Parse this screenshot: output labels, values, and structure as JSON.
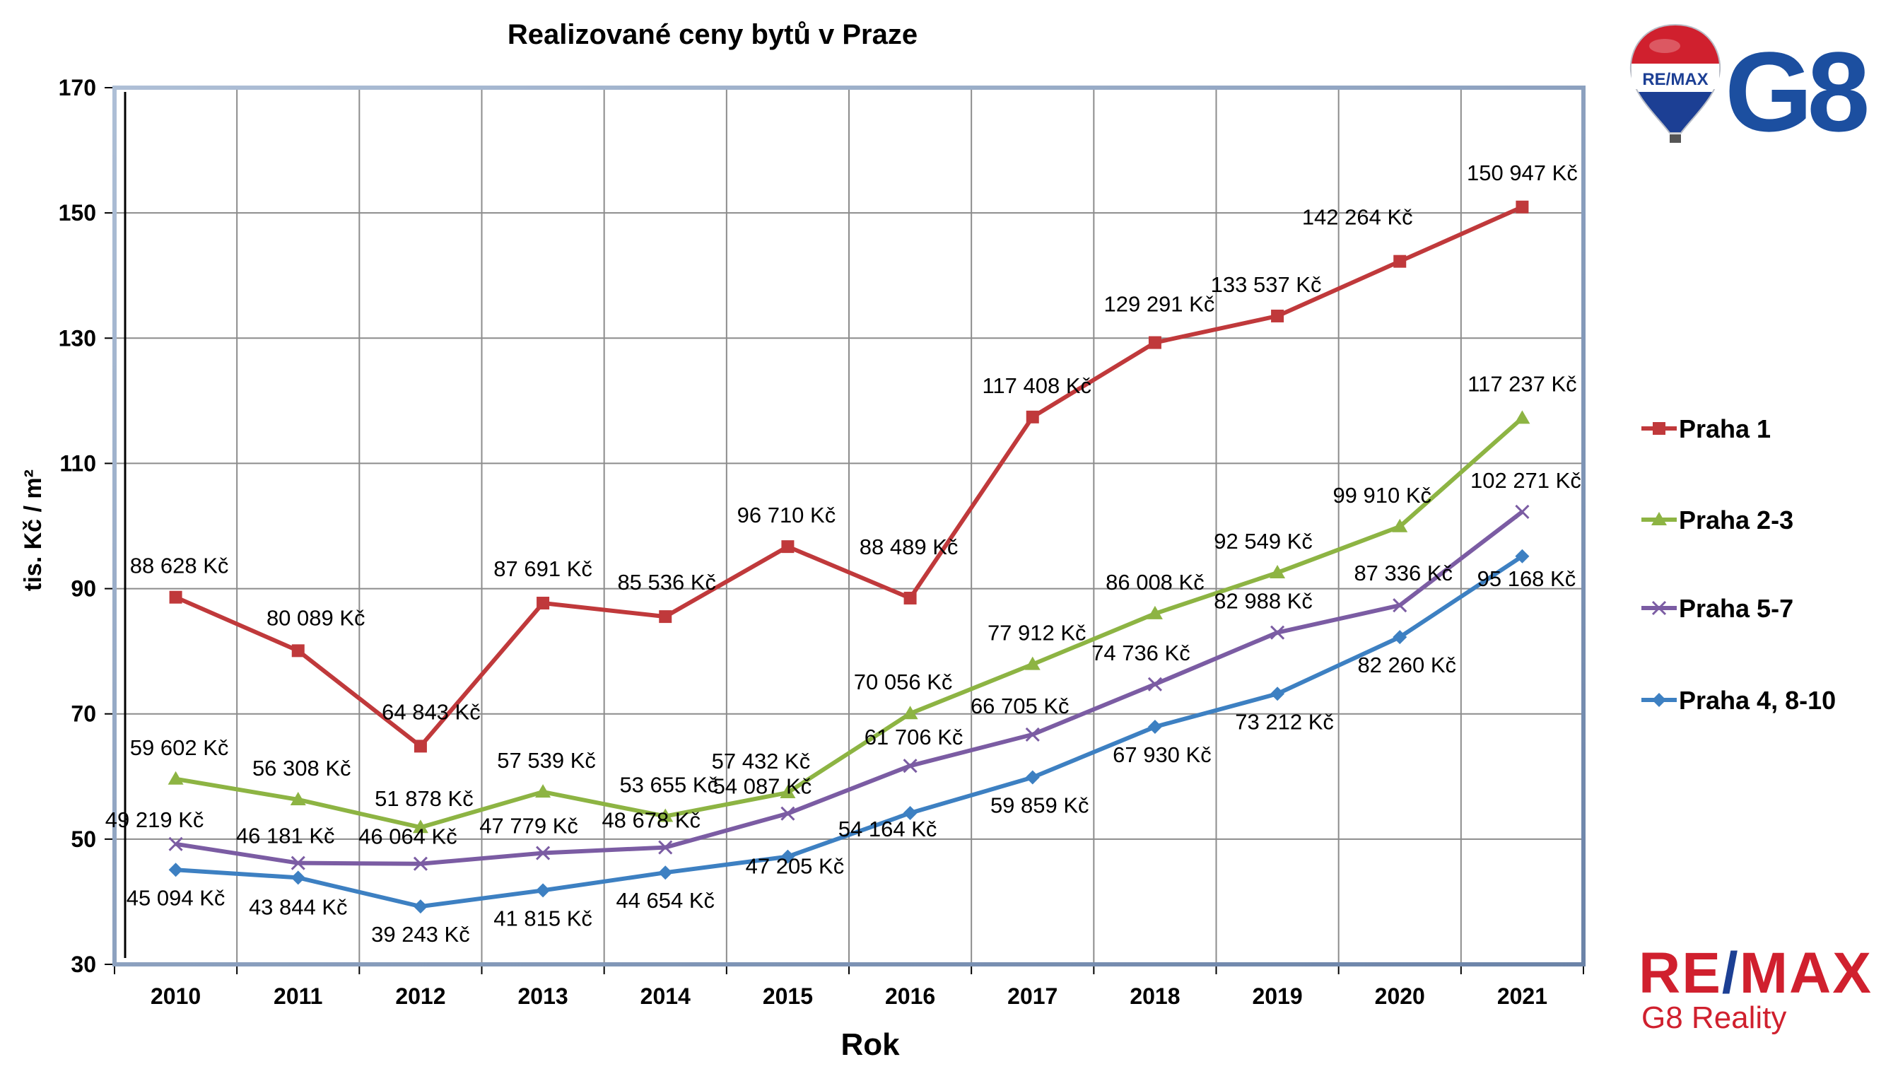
{
  "chart_data": {
    "type": "line",
    "title": "Realizované ceny bytů v Praze",
    "xlabel": "Rok",
    "ylabel": "tis. Kč / m²",
    "ylim": [
      30,
      170
    ],
    "yticks": [
      "30",
      "50",
      "70",
      "90",
      "110",
      "130",
      "150",
      "170"
    ],
    "categories": [
      "2010",
      "2011",
      "2012",
      "2013",
      "2014",
      "2015",
      "2016",
      "2017",
      "2018",
      "2019",
      "2020",
      "2021"
    ],
    "grid": true,
    "legend_position": "right",
    "series": [
      {
        "name": "Praha 1",
        "color": "#c0393b",
        "marker": "square",
        "values": [
          88.628,
          80.089,
          64.843,
          87.691,
          85.536,
          96.71,
          88.489,
          117.408,
          129.291,
          133.537,
          142.264,
          150.947
        ],
        "labels": [
          "88 628 Kč",
          "80 089 Kč",
          "64 843 Kč",
          "87 691 Kč",
          "85 536 Kč",
          "96 710 Kč",
          "88 489 Kč",
          "117 408 Kč",
          "129 291 Kč",
          "133 537 Kč",
          "142 264 Kč",
          "150 947 Kč"
        ]
      },
      {
        "name": "Praha 2-3",
        "color": "#8db443",
        "marker": "triangle",
        "values": [
          59.602,
          56.308,
          51.878,
          57.539,
          53.655,
          57.432,
          70.056,
          77.912,
          86.008,
          92.549,
          99.91,
          117.237
        ],
        "labels": [
          "59 602 Kč",
          "56 308 Kč",
          "51 878 Kč",
          "57 539 Kč",
          "53 655 Kč",
          "57 432 Kč",
          "70 056 Kč",
          "77 912 Kč",
          "86 008 Kč",
          "92 549 Kč",
          "99 910 Kč",
          "117 237 Kč"
        ]
      },
      {
        "name": "Praha 5-7",
        "color": "#7b5ca3",
        "marker": "x",
        "values": [
          49.219,
          46.181,
          46.064,
          47.779,
          48.678,
          54.087,
          61.706,
          66.705,
          74.736,
          82.988,
          87.336,
          102.271
        ],
        "labels": [
          "49 219 Kč",
          "46 181 Kč",
          "46 064 Kč",
          "47 779 Kč",
          "48 678 Kč",
          "54 087 Kč",
          "61 706 Kč",
          "66 705 Kč",
          "74 736 Kč",
          "82 988 Kč",
          "87 336 Kč",
          "102 271 Kč"
        ]
      },
      {
        "name": "Praha 4, 8-10",
        "color": "#3d80c2",
        "marker": "diamond",
        "values": [
          45.094,
          43.844,
          39.243,
          41.815,
          44.654,
          47.205,
          54.164,
          59.859,
          67.93,
          73.212,
          82.26,
          95.168
        ],
        "labels": [
          "45 094 Kč",
          "43 844 Kč",
          "39 243 Kč",
          "41 815 Kč",
          "44 654 Kč",
          "47 205 Kč",
          "54 164 Kč",
          "59 859 Kč",
          "67 930 Kč",
          "73 212 Kč",
          "82 260 Kč",
          "95 168 Kč"
        ]
      }
    ]
  },
  "logos": {
    "balloon_text": "RE/MAX",
    "g8_text": "G8",
    "remax_left": "RE",
    "remax_slash": "/",
    "remax_right": "MAX",
    "remax_sub": "G8 Reality"
  }
}
